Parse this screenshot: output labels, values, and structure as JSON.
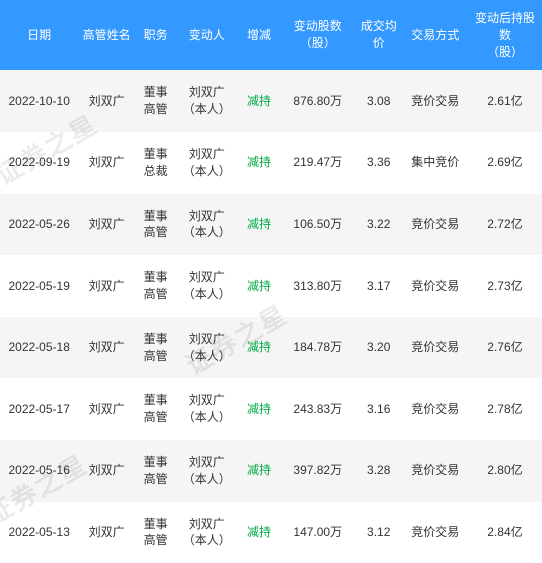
{
  "watermark_text": "证券之星",
  "table": {
    "columns": [
      "日期",
      "高管姓名",
      "职务",
      "变动人",
      "增减",
      "变动股数（股）",
      "成交均价",
      "交易方式",
      "变动后持股数（股）"
    ],
    "rows": [
      {
        "date": "2022-10-10",
        "name": "刘双广",
        "title": "董事\n高管",
        "changer": "刘双广（本人）",
        "action": "减持",
        "shares": "876.80万",
        "price": "3.08",
        "method": "竞价交易",
        "after": "2.61亿"
      },
      {
        "date": "2022-09-19",
        "name": "刘双广",
        "title": "董事\n总裁",
        "changer": "刘双广（本人）",
        "action": "减持",
        "shares": "219.47万",
        "price": "3.36",
        "method": "集中竞价",
        "after": "2.69亿"
      },
      {
        "date": "2022-05-26",
        "name": "刘双广",
        "title": "董事\n高管",
        "changer": "刘双广（本人）",
        "action": "减持",
        "shares": "106.50万",
        "price": "3.22",
        "method": "竞价交易",
        "after": "2.72亿"
      },
      {
        "date": "2022-05-19",
        "name": "刘双广",
        "title": "董事\n高管",
        "changer": "刘双广（本人）",
        "action": "减持",
        "shares": "313.80万",
        "price": "3.17",
        "method": "竞价交易",
        "after": "2.73亿"
      },
      {
        "date": "2022-05-18",
        "name": "刘双广",
        "title": "董事\n高管",
        "changer": "刘双广（本人）",
        "action": "减持",
        "shares": "184.78万",
        "price": "3.20",
        "method": "竞价交易",
        "after": "2.76亿"
      },
      {
        "date": "2022-05-17",
        "name": "刘双广",
        "title": "董事\n高管",
        "changer": "刘双广（本人）",
        "action": "减持",
        "shares": "243.83万",
        "price": "3.16",
        "method": "竞价交易",
        "after": "2.78亿"
      },
      {
        "date": "2022-05-16",
        "name": "刘双广",
        "title": "董事\n高管",
        "changer": "刘双广（本人）",
        "action": "减持",
        "shares": "397.82万",
        "price": "3.28",
        "method": "竞价交易",
        "after": "2.80亿"
      },
      {
        "date": "2022-05-13",
        "name": "刘双广",
        "title": "董事\n高管",
        "changer": "刘双广（本人）",
        "action": "减持",
        "shares": "147.00万",
        "price": "3.12",
        "method": "竞价交易",
        "after": "2.84亿"
      }
    ],
    "col_widths": [
      "72",
      "52",
      "38",
      "56",
      "40",
      "68",
      "44",
      "60",
      "68"
    ],
    "header_bg": "#3399ff",
    "header_color": "#ffffff",
    "row_even_bg": "#f5f5f5",
    "row_odd_bg": "#ffffff",
    "text_color": "#333333",
    "reduce_color": "#00aa44",
    "font_size": 12
  }
}
